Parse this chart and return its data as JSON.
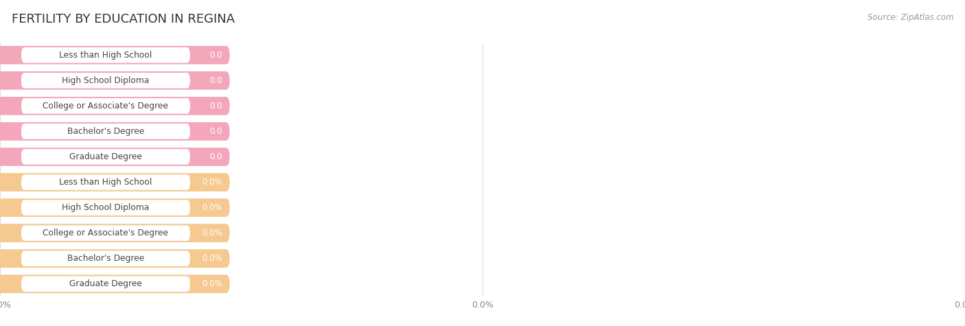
{
  "title": "FERTILITY BY EDUCATION IN REGINA",
  "source_text": "Source: ZipAtlas.com",
  "top_section_labels": [
    "Less than High School",
    "High School Diploma",
    "College or Associate's Degree",
    "Bachelor's Degree",
    "Graduate Degree"
  ],
  "top_section_values": [
    0.0,
    0.0,
    0.0,
    0.0,
    0.0
  ],
  "top_section_value_labels": [
    "0.0",
    "0.0",
    "0.0",
    "0.0",
    "0.0"
  ],
  "bottom_section_labels": [
    "Less than High School",
    "High School Diploma",
    "College or Associate's Degree",
    "Bachelor's Degree",
    "Graduate Degree"
  ],
  "bottom_section_values": [
    0.0,
    0.0,
    0.0,
    0.0,
    0.0
  ],
  "bottom_section_value_labels": [
    "0.0%",
    "0.0%",
    "0.0%",
    "0.0%",
    "0.0%"
  ],
  "top_bar_color": "#F4A7BB",
  "top_bar_bg_color": "#EEEEEE",
  "bottom_bar_color": "#F5C990",
  "bottom_bar_bg_color": "#EEEEEE",
  "background_color": "#FFFFFF",
  "title_color": "#333333",
  "label_color": "#444444",
  "value_label_color": "#FFFFFF",
  "source_color": "#999999",
  "grid_color": "#DDDDDD",
  "tick_label_color": "#888888"
}
